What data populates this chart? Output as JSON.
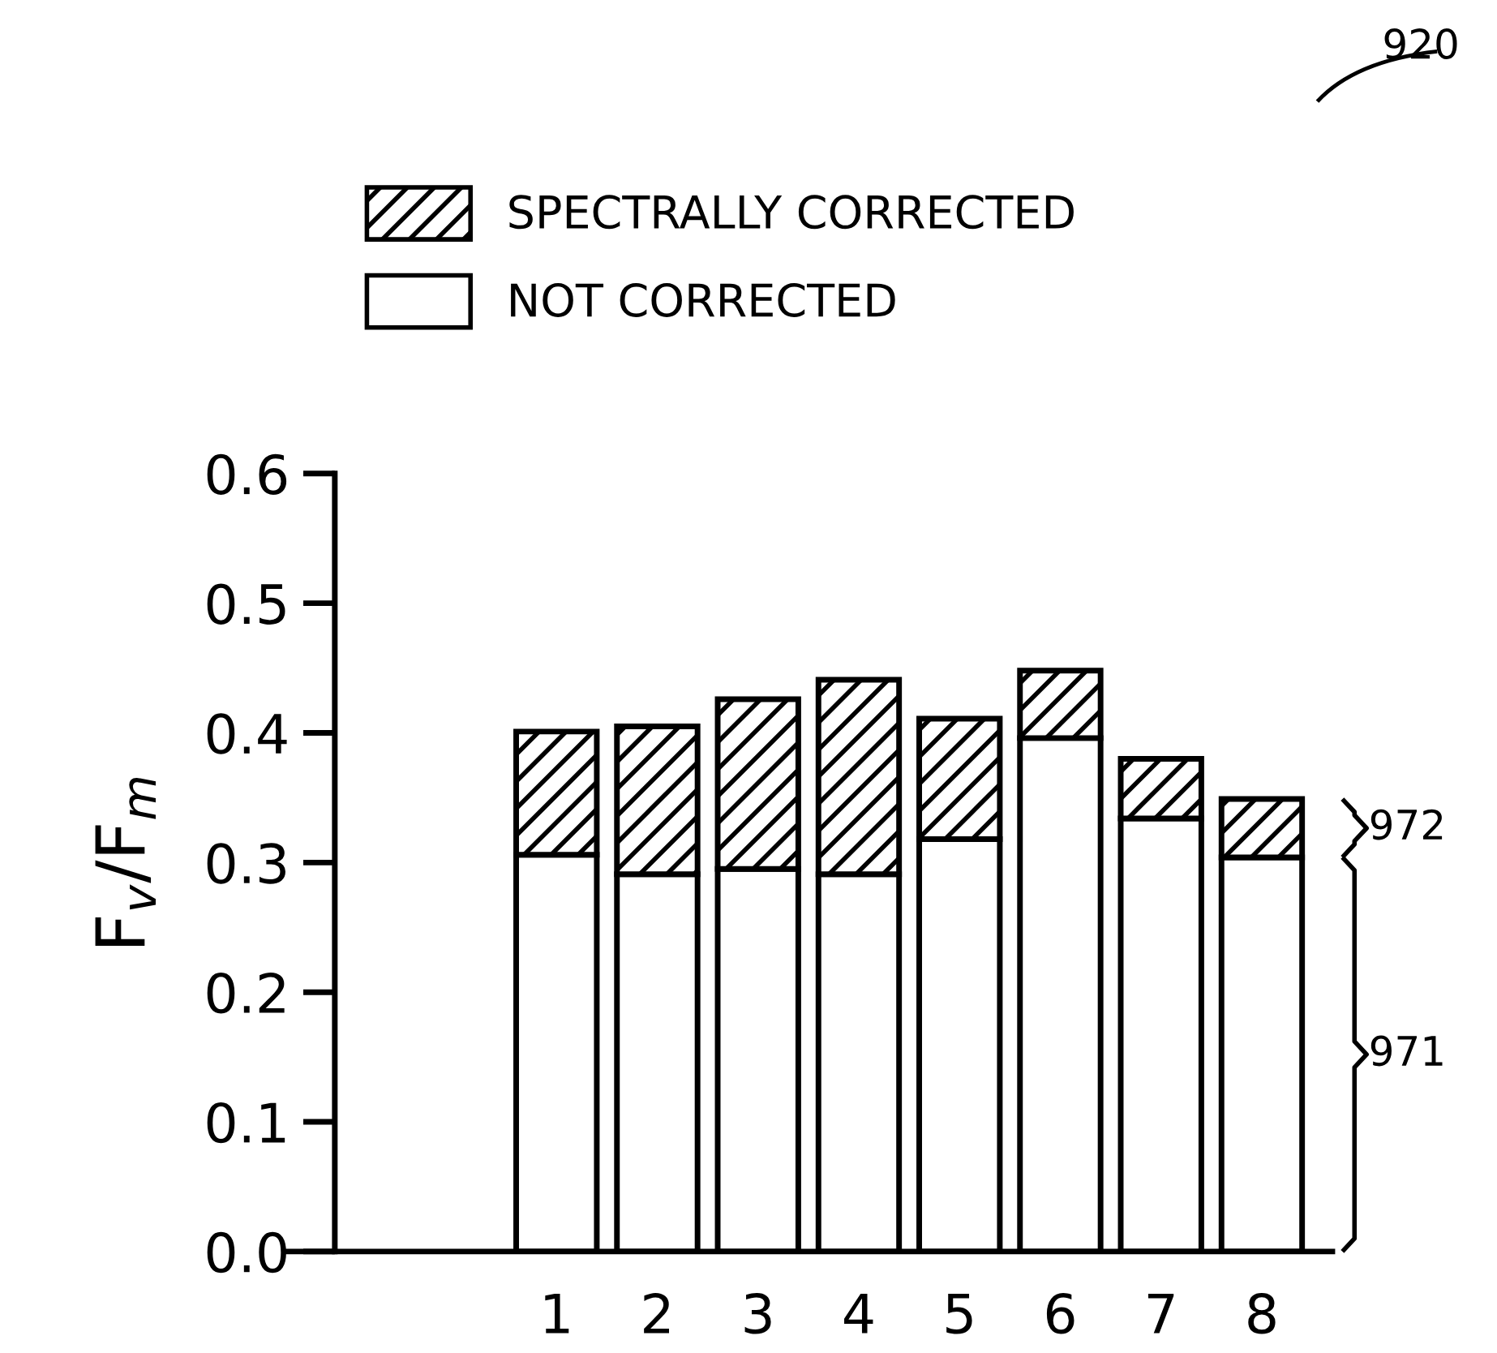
{
  "chart_data": {
    "type": "bar",
    "stacked": true,
    "ylabel": "F$_{v}$/F$_{m}$",
    "categories": [
      "1",
      "2",
      "3",
      "4",
      "5",
      "6",
      "7",
      "8"
    ],
    "series": [
      {
        "name": "NOT CORRECTED",
        "color": "#ffffff",
        "values": [
          0.306,
          0.291,
          0.295,
          0.291,
          0.318,
          0.396,
          0.334,
          0.304
        ]
      },
      {
        "name": "SPECTRALLY CORRECTED",
        "color": "#000000",
        "values": [
          0.095,
          0.114,
          0.131,
          0.15,
          0.093,
          0.052,
          0.046,
          0.045
        ]
      }
    ],
    "ylim": [
      0,
      0.6
    ],
    "yticks": [
      {
        "value": 0,
        "label": "0.0"
      },
      0.1,
      0.2,
      0.3,
      0.4,
      0.5,
      0.6
    ],
    "grid": false,
    "legend": "top left",
    "annotations": [
      "920",
      "972",
      "971"
    ]
  }
}
